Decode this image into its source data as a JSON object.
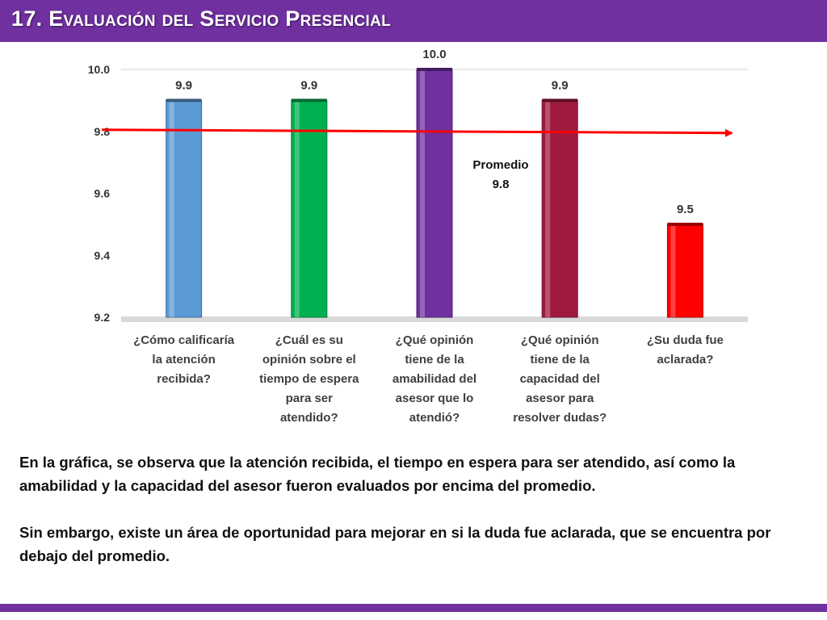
{
  "header": {
    "title": "17. Evaluación del Servicio Presencial"
  },
  "chart_data": {
    "type": "bar",
    "categories": [
      [
        "¿Cómo calificaría",
        "la atención",
        "recibida?"
      ],
      [
        "¿Cuál es su",
        "opinión sobre el",
        "tiempo de espera",
        "para ser",
        "atendido?"
      ],
      [
        "¿Qué opinión",
        "tiene de la",
        "amabilidad del",
        "asesor que lo",
        "atendió?"
      ],
      [
        "¿Qué opinión",
        "tiene de la",
        "capacidad del",
        "asesor para",
        "resolver dudas?"
      ],
      [
        "¿Su duda fue",
        "aclarada?"
      ]
    ],
    "values": [
      9.9,
      9.9,
      10.0,
      9.9,
      9.5
    ],
    "value_labels": [
      "9.9",
      "9.9",
      "10.0",
      "9.9",
      "9.5"
    ],
    "colors": [
      "#5b9bd5",
      "#00b050",
      "#7030a0",
      "#9e1b3e",
      "#ff0000"
    ],
    "ylim": [
      9.2,
      10.0
    ],
    "yticks": [
      "9.2",
      "9.4",
      "9.6",
      "9.8",
      "10.0"
    ],
    "average": {
      "value": 9.8,
      "label": "Promedio",
      "value_label": "9.8",
      "color": "#ff0000"
    },
    "grid": false,
    "legend": "none"
  },
  "summary": {
    "paragraph1": "En la gráfica, se observa que la atención recibida, el tiempo en espera para ser atendido, así como la amabilidad y la capacidad del asesor fueron evaluados por encima del promedio.",
    "paragraph2": "Sin embargo, existe un área de oportunidad para mejorar en si la duda fue aclarada, que se encuentra por debajo del promedio."
  },
  "theme": {
    "accent": "#7030a0"
  }
}
